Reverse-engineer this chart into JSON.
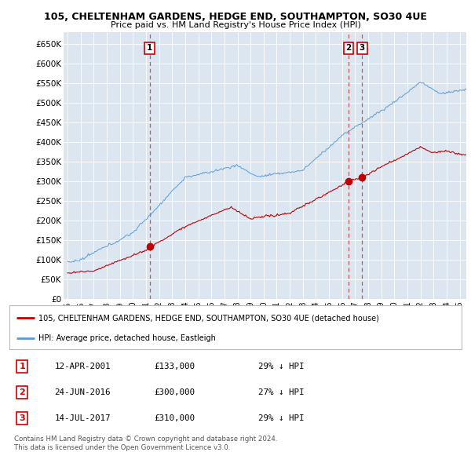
{
  "title1": "105, CHELTENHAM GARDENS, HEDGE END, SOUTHAMPTON, SO30 4UE",
  "title2": "Price paid vs. HM Land Registry's House Price Index (HPI)",
  "ylim": [
    0,
    680000
  ],
  "ytick_labels": [
    "£0",
    "£50K",
    "£100K",
    "£150K",
    "£200K",
    "£250K",
    "£300K",
    "£350K",
    "£400K",
    "£450K",
    "£500K",
    "£550K",
    "£600K",
    "£650K"
  ],
  "ytick_values": [
    0,
    50000,
    100000,
    150000,
    200000,
    250000,
    300000,
    350000,
    400000,
    450000,
    500000,
    550000,
    600000,
    650000
  ],
  "hpi_color": "#5b9bd5",
  "price_color": "#c00000",
  "bg_plot": "#dce6f1",
  "sale_dates": [
    2001.28,
    2016.48,
    2017.54
  ],
  "sale_prices": [
    133000,
    300000,
    310000
  ],
  "sale_labels": [
    "1",
    "2",
    "3"
  ],
  "legend_line1": "105, CHELTENHAM GARDENS, HEDGE END, SOUTHAMPTON, SO30 4UE (detached house)",
  "legend_line2": "HPI: Average price, detached house, Eastleigh",
  "table_data": [
    [
      "1",
      "12-APR-2001",
      "£133,000",
      "29% ↓ HPI"
    ],
    [
      "2",
      "24-JUN-2016",
      "£300,000",
      "27% ↓ HPI"
    ],
    [
      "3",
      "14-JUL-2017",
      "£310,000",
      "29% ↓ HPI"
    ]
  ],
  "footnote1": "Contains HM Land Registry data © Crown copyright and database right 2024.",
  "footnote2": "This data is licensed under the Open Government Licence v3.0."
}
